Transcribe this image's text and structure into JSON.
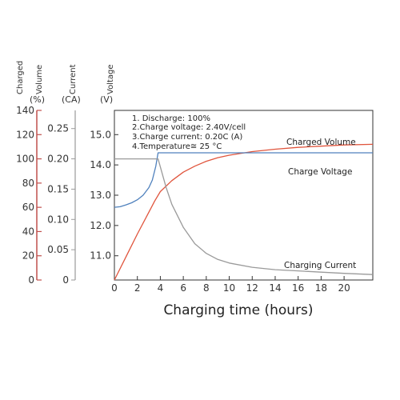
{
  "chart_data": {
    "type": "line",
    "xlabel": "Charging time (hours)",
    "x_ticks": [
      "0",
      "2",
      "4",
      "6",
      "8",
      "10",
      "12",
      "14",
      "16",
      "18",
      "20"
    ],
    "xlim": [
      0,
      22.5
    ],
    "axes": {
      "volume": {
        "title_lines": [
          "Charged",
          "Volume"
        ],
        "unit": "(%)",
        "ticks": [
          "0",
          "20",
          "40",
          "60",
          "80",
          "100",
          "120",
          "140"
        ],
        "range": [
          0,
          140
        ],
        "color": "#c0504d"
      },
      "current": {
        "title": "Current",
        "unit": "(CA)",
        "ticks": [
          "0",
          "0.05",
          "0.10",
          "0.15",
          "0.20",
          "0.25"
        ],
        "range": [
          0,
          0.28
        ],
        "color": "#8c8c8c"
      },
      "voltage": {
        "title": "Voltage",
        "unit": "(V)",
        "ticks": [
          "11.0",
          "12.0",
          "13.0",
          "14.0",
          "15.0"
        ],
        "range": [
          10.2,
          15.8
        ],
        "color": "#4f81bd"
      }
    },
    "notes": [
      "1. Discharge: 100%",
      "2.Charge voltage: 2.40V/cell",
      "3.Charge current: 0.20C (A)",
      "4.Temperature≅ 25 °C"
    ],
    "series": [
      {
        "name": "Charged Volume",
        "axis": "volume",
        "color": "#e0553d",
        "x": [
          0,
          1,
          2,
          3,
          3.5,
          4,
          5,
          6,
          7,
          8,
          9,
          10,
          12,
          14,
          16,
          18,
          20,
          22.5
        ],
        "y": [
          0,
          19,
          38,
          56,
          65,
          73,
          82,
          89,
          94,
          98,
          101,
          103,
          106,
          108,
          109.5,
          110.5,
          111.5,
          112
        ]
      },
      {
        "name": "Charge Voltage",
        "axis": "voltage",
        "color": "#4f81bd",
        "x": [
          0,
          0.5,
          1,
          1.5,
          2,
          2.5,
          3,
          3.3,
          3.6,
          3.8,
          4,
          6,
          10,
          14,
          18,
          22.5
        ],
        "y": [
          12.6,
          12.62,
          12.68,
          12.75,
          12.85,
          13.0,
          13.25,
          13.5,
          13.95,
          14.4,
          14.4,
          14.4,
          14.4,
          14.4,
          14.4,
          14.4
        ]
      },
      {
        "name": "Charging Current",
        "axis": "current",
        "color": "#9a9a9a",
        "x": [
          0,
          1,
          2,
          3,
          3.8,
          4.5,
          5,
          6,
          7,
          8,
          9,
          10,
          12,
          14,
          16,
          18,
          20,
          22.5
        ],
        "y": [
          0.2,
          0.2,
          0.2,
          0.2,
          0.2,
          0.153,
          0.125,
          0.087,
          0.06,
          0.044,
          0.034,
          0.028,
          0.021,
          0.017,
          0.015,
          0.013,
          0.011,
          0.009
        ]
      }
    ]
  },
  "colors": {
    "frame": "#333333",
    "volume_axis": "#c0504d",
    "current_axis": "#9a9a9a",
    "voltage_reference": "#9a9a9a"
  }
}
